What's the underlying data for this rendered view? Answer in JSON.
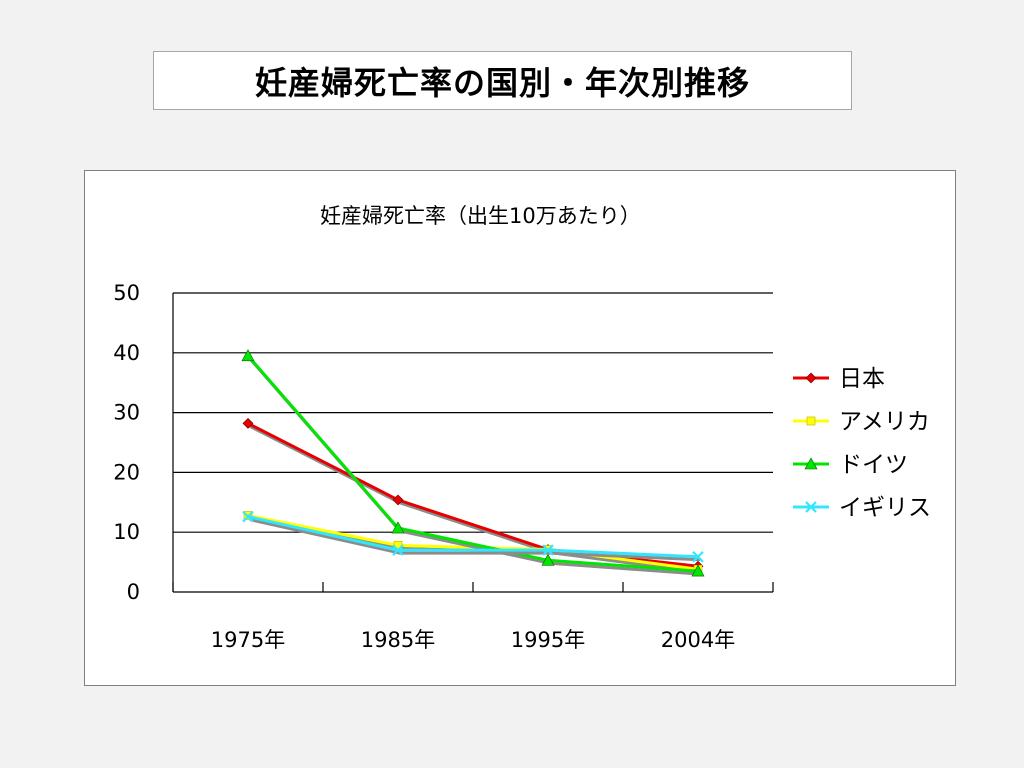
{
  "slide": {
    "title": "妊産婦死亡率の国別・年次別推移"
  },
  "chart_data": {
    "type": "line",
    "title": "妊産婦死亡率（出生10万あたり）",
    "categories": [
      "1975年",
      "1985年",
      "1995年",
      "2004年"
    ],
    "ylim": [
      0,
      50
    ],
    "yticks": [
      0,
      10,
      20,
      30,
      40,
      50
    ],
    "grid": true,
    "legend": "right",
    "series": [
      {
        "name": "日本",
        "color": "#e60000",
        "marker": "diamond",
        "values": [
          28.2,
          15.4,
          7.1,
          4.3
        ]
      },
      {
        "name": "アメリカ",
        "color": "#ffff00",
        "marker": "square",
        "values": [
          12.8,
          7.8,
          7.1,
          3.8
        ]
      },
      {
        "name": "ドイツ",
        "color": "#00e600",
        "marker": "triangle",
        "values": [
          39.5,
          10.7,
          5.3,
          3.5
        ]
      },
      {
        "name": "イギリス",
        "color": "#33e6ff",
        "marker": "x",
        "values": [
          12.6,
          7.0,
          7.0,
          5.9
        ]
      }
    ]
  }
}
